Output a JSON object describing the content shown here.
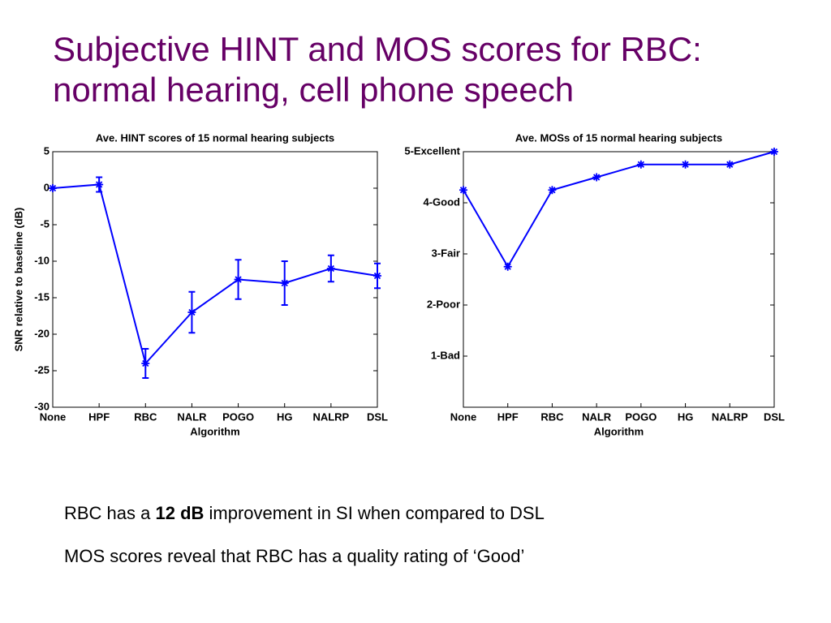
{
  "slide": {
    "title": [
      "Subjective HINT and MOS scores for RBC:",
      "normal hearing, cell phone speech"
    ],
    "bullets": [
      [
        "RBC has a ",
        "12 dB",
        " improvement in SI when compared to DSL"
      ],
      [
        "MOS scores reveal that RBC has a quality rating of ‘Good’"
      ]
    ]
  },
  "chart_data": [
    {
      "type": "errorline",
      "title": "Ave. HINT scores of 15 normal hearing subjects",
      "xlabel": "Algorithm",
      "ylabel": "SNR relative to baseline (dB)",
      "categories": [
        "None",
        "HPF",
        "RBC",
        "NALR",
        "POGO",
        "HG",
        "NALRP",
        "DSL"
      ],
      "values": [
        0,
        0.5,
        -24,
        -17,
        -12.5,
        -13,
        -11,
        -12
      ],
      "errors": [
        0,
        1,
        2,
        2.8,
        2.7,
        3,
        1.8,
        1.7
      ],
      "color": "#0000ff",
      "ylim": [
        -30,
        5
      ],
      "yticks": [
        -30,
        -25,
        -20,
        -15,
        -10,
        -5,
        0,
        5
      ]
    },
    {
      "type": "line",
      "title": "Ave. MOSs of 15 normal hearing subjects",
      "xlabel": "Algorithm",
      "categories": [
        "None",
        "HPF",
        "RBC",
        "NALR",
        "POGO",
        "HG",
        "NALRP",
        "DSL"
      ],
      "values": [
        4.25,
        2.75,
        4.25,
        4.5,
        4.75,
        4.75,
        4.75,
        5
      ],
      "color": "#0000ff",
      "ylim": [
        0,
        5
      ],
      "yticks": [
        {
          "value": 1,
          "label": "1-Bad"
        },
        {
          "value": 2,
          "label": "2-Poor"
        },
        {
          "value": 3,
          "label": "3-Fair"
        },
        {
          "value": 4,
          "label": "4-Good"
        },
        {
          "value": 5,
          "label": "5-Excellent"
        }
      ]
    }
  ]
}
